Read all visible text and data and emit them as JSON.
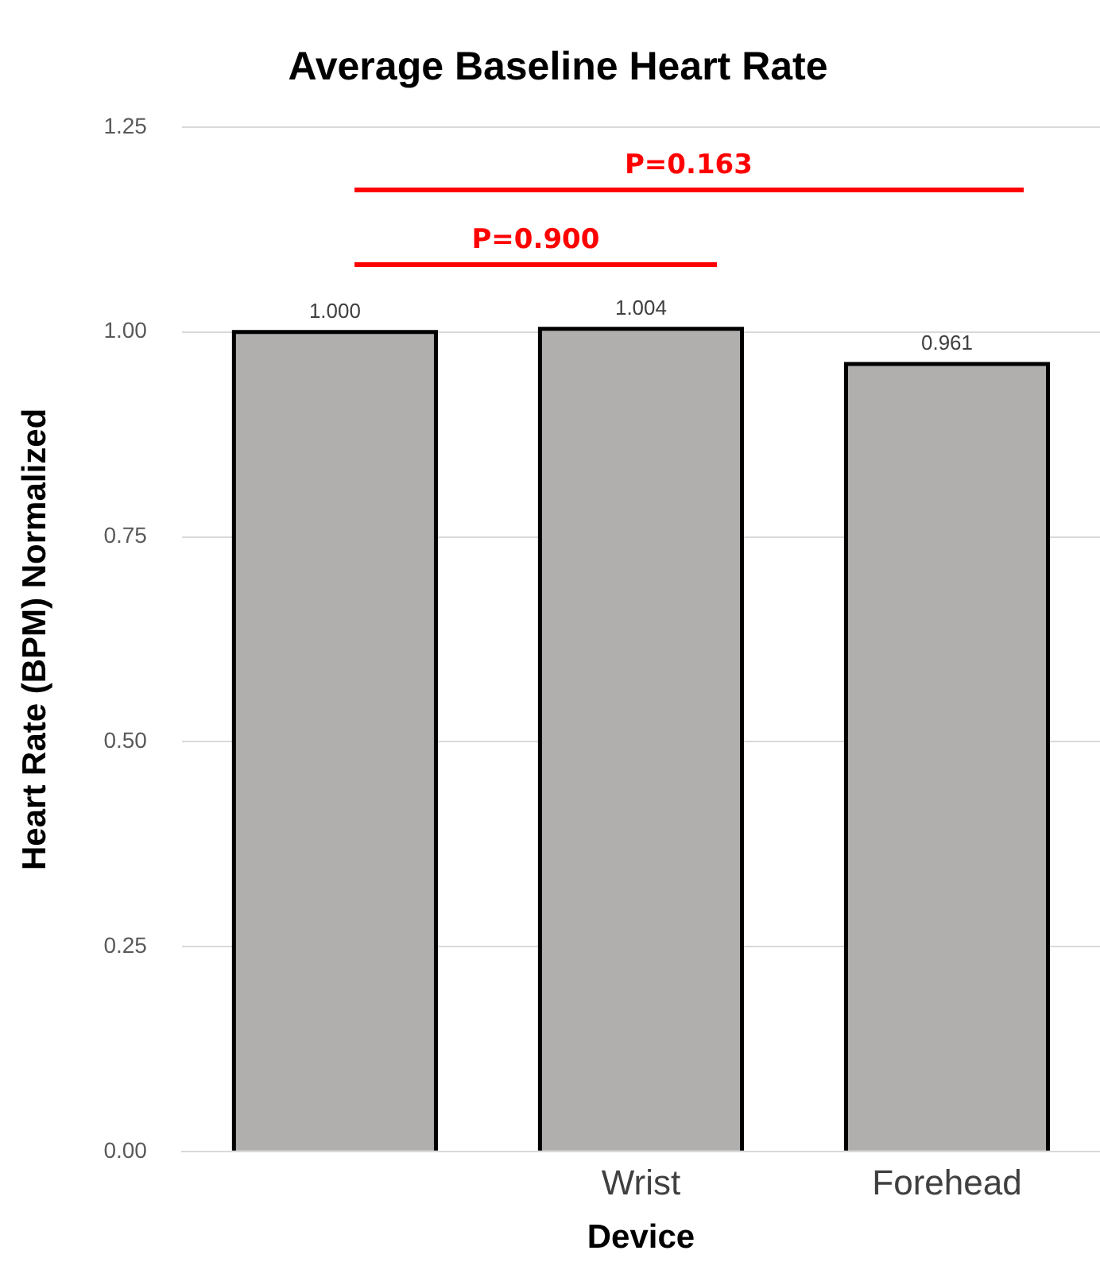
{
  "chart_data": {
    "type": "bar",
    "title": "Average Baseline Heart Rate",
    "xlabel": "Device",
    "ylabel": "Heart Rate (BPM) Normalized",
    "categories": [
      null,
      "Wrist",
      "Forehead"
    ],
    "values": [
      1.0,
      1.004,
      0.961
    ],
    "value_labels": [
      "1.000",
      "1.004",
      "0.961"
    ],
    "color": "#b1aeae",
    "ylim": [
      0,
      1.25
    ],
    "yticks": [
      {
        "value": 0,
        "label": "0.00"
      },
      {
        "value": 0.25,
        "label": "0.25"
      },
      {
        "value": 0.5,
        "label": "0.50"
      },
      {
        "value": 0.75,
        "label": "0.75"
      },
      {
        "value": 1,
        "label": "1.00"
      },
      {
        "value": 1.25,
        "label": "1.25"
      }
    ],
    "grid": "y",
    "legend": false,
    "annotations": [
      "P=0.163",
      "P=0.900"
    ]
  }
}
